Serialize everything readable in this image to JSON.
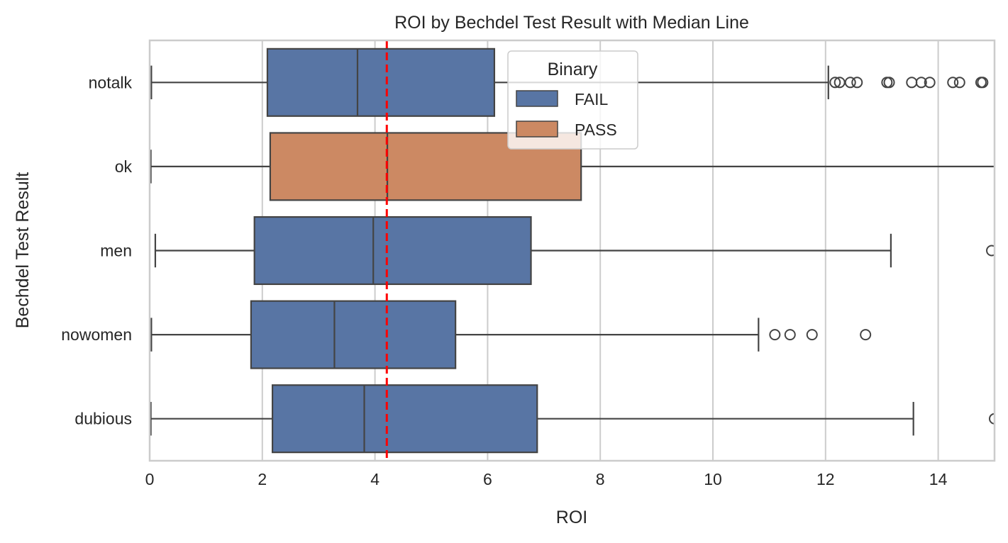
{
  "chart_data": {
    "type": "boxplot",
    "orientation": "horizontal",
    "title": "ROI by Bechdel Test Result with Median Line",
    "xlabel": "ROI",
    "ylabel": "Bechdel Test Result",
    "xlim": [
      0,
      15
    ],
    "xticks": [
      0,
      2,
      4,
      6,
      8,
      10,
      12,
      14
    ],
    "grid": "vertical",
    "legend": {
      "title": "Binary",
      "placement": "top-center",
      "entries": [
        {
          "label": "FAIL",
          "color": "#5875a4"
        },
        {
          "label": "PASS",
          "color": "#cc8963"
        }
      ]
    },
    "median_line": {
      "value": 4.21,
      "color": "#ff0000",
      "style": "dashed"
    },
    "categories": [
      "notalk",
      "ok",
      "men",
      "nowomen",
      "dubious"
    ],
    "boxes": [
      {
        "category": "notalk",
        "group": "FAIL",
        "whislo": 0.03,
        "q1": 2.09,
        "med": 3.69,
        "q3": 6.12,
        "whishi": 12.05,
        "fliers": [
          12.17,
          12.25,
          12.44,
          12.56,
          13.09,
          13.13,
          13.53,
          13.7,
          13.85,
          14.26,
          14.38,
          14.76,
          14.79
        ]
      },
      {
        "category": "ok",
        "group": "PASS",
        "whislo": 0.02,
        "q1": 2.14,
        "med": 4.22,
        "q3": 7.66,
        "whishi": 16,
        "fliers": []
      },
      {
        "category": "men",
        "group": "FAIL",
        "whislo": 0.1,
        "q1": 1.86,
        "med": 3.97,
        "q3": 6.77,
        "whishi": 13.16,
        "fliers": [
          14.95
        ]
      },
      {
        "category": "nowomen",
        "group": "FAIL",
        "whislo": 0.03,
        "q1": 1.8,
        "med": 3.28,
        "q3": 5.43,
        "whishi": 10.81,
        "fliers": [
          11.1,
          11.37,
          11.76,
          12.71
        ]
      },
      {
        "category": "dubious",
        "group": "FAIL",
        "whislo": 0.02,
        "q1": 2.18,
        "med": 3.81,
        "q3": 6.88,
        "whishi": 13.56,
        "fliers": [
          15.0
        ]
      }
    ]
  }
}
